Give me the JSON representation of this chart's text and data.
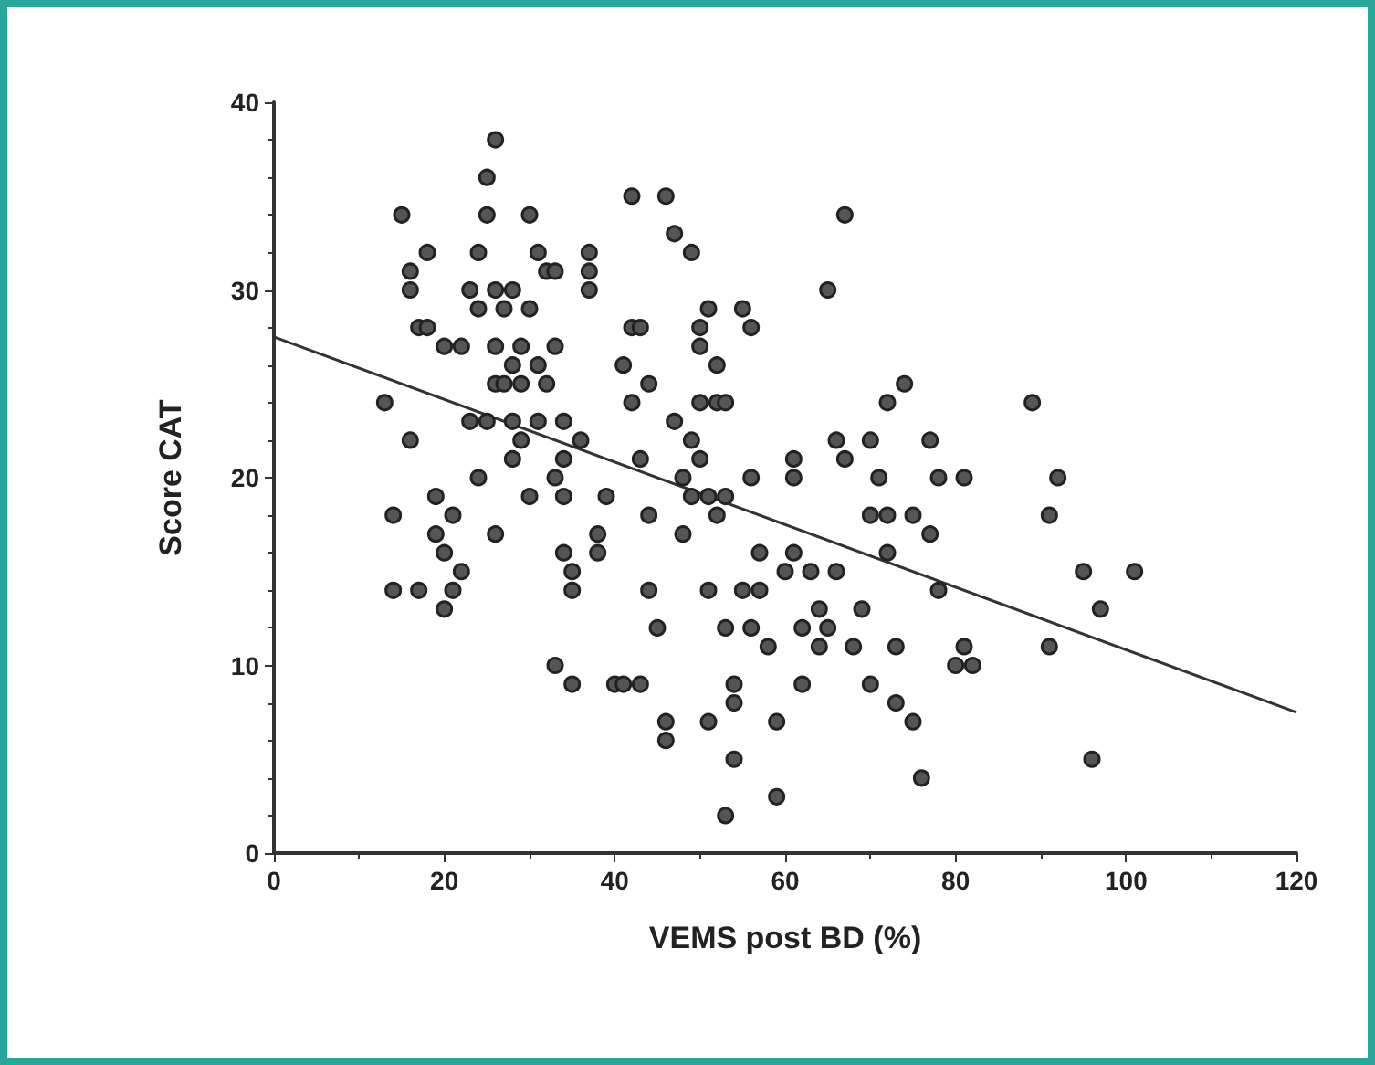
{
  "chart_data": {
    "type": "scatter",
    "xlabel": "VEMS post BD (%)",
    "ylabel": "Score CAT",
    "xlim": [
      0,
      120
    ],
    "xticks": [
      0,
      20,
      40,
      60,
      80,
      100,
      120
    ],
    "ylim": [
      0,
      40
    ],
    "yticks": [
      0,
      10,
      20,
      30,
      40
    ],
    "grid": false,
    "marker": "circle",
    "series": [
      {
        "color": "#555555",
        "x": [
          13,
          14,
          14,
          15,
          16,
          16,
          16,
          17,
          17,
          18,
          18,
          19,
          19,
          20,
          20,
          20,
          21,
          21,
          22,
          22,
          23,
          23,
          24,
          24,
          24,
          25,
          25,
          25,
          26,
          26,
          26,
          26,
          26,
          27,
          27,
          28,
          28,
          28,
          28,
          29,
          29,
          29,
          30,
          30,
          30,
          31,
          31,
          31,
          32,
          32,
          33,
          33,
          33,
          33,
          34,
          34,
          34,
          34,
          35,
          35,
          35,
          36,
          37,
          37,
          37,
          38,
          38,
          39,
          40,
          41,
          41,
          42,
          42,
          42,
          43,
          43,
          43,
          44,
          44,
          44,
          45,
          46,
          46,
          46,
          47,
          47,
          48,
          48,
          49,
          49,
          49,
          50,
          50,
          50,
          50,
          51,
          51,
          51,
          51,
          52,
          52,
          52,
          53,
          53,
          53,
          53,
          54,
          54,
          54,
          55,
          55,
          56,
          56,
          56,
          57,
          57,
          58,
          59,
          59,
          60,
          61,
          61,
          61,
          62,
          62,
          63,
          64,
          64,
          65,
          65,
          66,
          66,
          67,
          67,
          68,
          69,
          70,
          70,
          70,
          71,
          72,
          72,
          72,
          73,
          73,
          74,
          75,
          75,
          76,
          77,
          77,
          78,
          78,
          80,
          81,
          81,
          82,
          89,
          91,
          91,
          92,
          95,
          96,
          97,
          101
        ],
        "values": [
          24,
          14,
          18,
          34,
          22,
          31,
          30,
          28,
          14,
          32,
          28,
          19,
          17,
          27,
          16,
          13,
          18,
          14,
          27,
          15,
          30,
          23,
          32,
          29,
          20,
          36,
          34,
          23,
          38,
          30,
          27,
          25,
          17,
          29,
          25,
          26,
          30,
          23,
          21,
          27,
          25,
          22,
          34,
          19,
          29,
          26,
          23,
          32,
          25,
          31,
          31,
          27,
          20,
          10,
          23,
          21,
          19,
          16,
          14,
          9,
          15,
          22,
          32,
          31,
          30,
          17,
          16,
          19,
          9,
          9,
          26,
          35,
          28,
          24,
          28,
          21,
          9,
          25,
          18,
          14,
          12,
          35,
          7,
          6,
          33,
          23,
          20,
          17,
          32,
          22,
          19,
          28,
          27,
          24,
          21,
          29,
          19,
          7,
          14,
          26,
          24,
          18,
          24,
          19,
          12,
          2,
          5,
          9,
          8,
          29,
          14,
          28,
          20,
          12,
          14,
          16,
          11,
          7,
          3,
          15,
          16,
          20,
          21,
          12,
          9,
          15,
          11,
          13,
          30,
          12,
          15,
          22,
          34,
          21,
          11,
          13,
          22,
          18,
          9,
          20,
          18,
          24,
          16,
          11,
          8,
          25,
          18,
          7,
          4,
          22,
          17,
          20,
          14,
          10,
          20,
          11,
          10,
          24,
          18,
          11,
          20,
          15,
          5,
          13,
          15
        ]
      },
      {
        "type": "line",
        "color": "#333333",
        "x": [
          0,
          120
        ],
        "values": [
          27.5,
          7.5
        ],
        "marker": "none",
        "line_style": "solid"
      }
    ]
  }
}
